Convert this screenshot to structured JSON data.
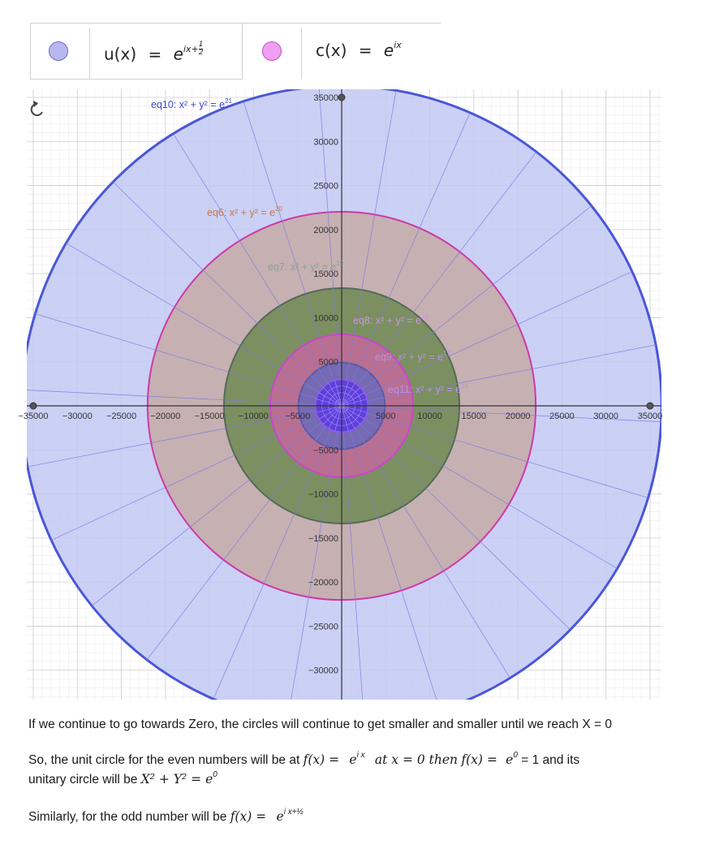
{
  "legend": {
    "u": {
      "lhs": "u(x)",
      "eq": "=",
      "base": "e",
      "exp": "ix+",
      "frac_num": "1",
      "frac_den": "2",
      "color": "#b8b8ee"
    },
    "c": {
      "lhs": "c(x)",
      "eq": "=",
      "base": "e",
      "exp": "ix",
      "color": "#ef9ef0"
    }
  },
  "chart_data": {
    "type": "circle-plot",
    "xlim": [
      -35000,
      35000
    ],
    "ylim": [
      -33000,
      35000
    ],
    "grid": true,
    "x_ticks": [
      "-35000",
      "-30000",
      "-25000",
      "-20000",
      "-15000",
      "-10000",
      "-5000",
      "5000",
      "10000",
      "15000",
      "20000",
      "25000",
      "30000",
      "35000"
    ],
    "y_ticks": [
      "35000",
      "30000",
      "25000",
      "20000",
      "15000",
      "10000",
      "5000",
      "-5000",
      "-10000",
      "-15000",
      "-20000",
      "-25000",
      "-30000"
    ],
    "circles": [
      {
        "name": "eq10: x² + y² = e²¹",
        "label": "eq10: x² + y² = ",
        "exp": "21",
        "radius": 36316,
        "fill": "#c2c8f3",
        "stroke": "#4a56d8",
        "label_color": "#3a48d0"
      },
      {
        "name": "eq6: x² + y² = e²⁰",
        "label": "eq6: x² + y² = ",
        "exp": "20",
        "radius": 22026,
        "fill": "#c6aaa6",
        "stroke": "#cc3aa8",
        "label_color": "#cc7744"
      },
      {
        "name": "eq7: x² + y² = e¹⁹",
        "label": "eq7: x² + y² = ",
        "exp": "19",
        "radius": 13360,
        "fill": "#6e8a52",
        "stroke": "#546a5a",
        "label_color": "#8aa09a"
      },
      {
        "name": "eq8: x² + y² = e¹⁸",
        "label": "eq8: x² + y² = ",
        "exp": "18",
        "radius": 8103,
        "fill": "#c46a9a",
        "stroke": "#cc44cc",
        "label_color": "#d090e8"
      },
      {
        "name": "eq9: x² + y² = e¹⁷",
        "label": "eq9: x² + y² = ",
        "exp": "17",
        "radius": 4915,
        "fill": "#6a6ab8",
        "stroke": "#5a5aa8",
        "label_color": "#b890e0"
      },
      {
        "name": "eq11: x² + y² = e¹⁶",
        "label": "eq11: x² + y² = ",
        "exp": "16",
        "radius": 2981,
        "fill": "#5a38e0",
        "stroke": "#8a58e8",
        "label_color": "#b890f0"
      }
    ],
    "points": [
      [
        0,
        35000
      ],
      [
        -35000,
        0
      ],
      [
        35000,
        0
      ]
    ]
  },
  "prose": {
    "p1": "If we continue to go towards Zero, the circles will continue to get smaller and smaller until we reach X = 0",
    "p2_a": "So, the unit circle for the even numbers will be at ",
    "p2_fx": "f(x) =",
    "p2_e1": "e",
    "p2_e1sup": "i x",
    "p2_mid": "at x = 0 then",
    "p2_fx2": "f(x) =",
    "p2_e2": "e",
    "p2_e2sup": "0",
    "p2_eq1": "= 1 and its",
    "p3_a": "unitary circle will be ",
    "p3_math": "X² + Y² = e",
    "p3_sup": "0",
    "p4_a": "Similarly, for the odd number will be ",
    "p4_math": "f(x) =",
    "p4_e": "e",
    "p4_sup": "i x+½"
  }
}
